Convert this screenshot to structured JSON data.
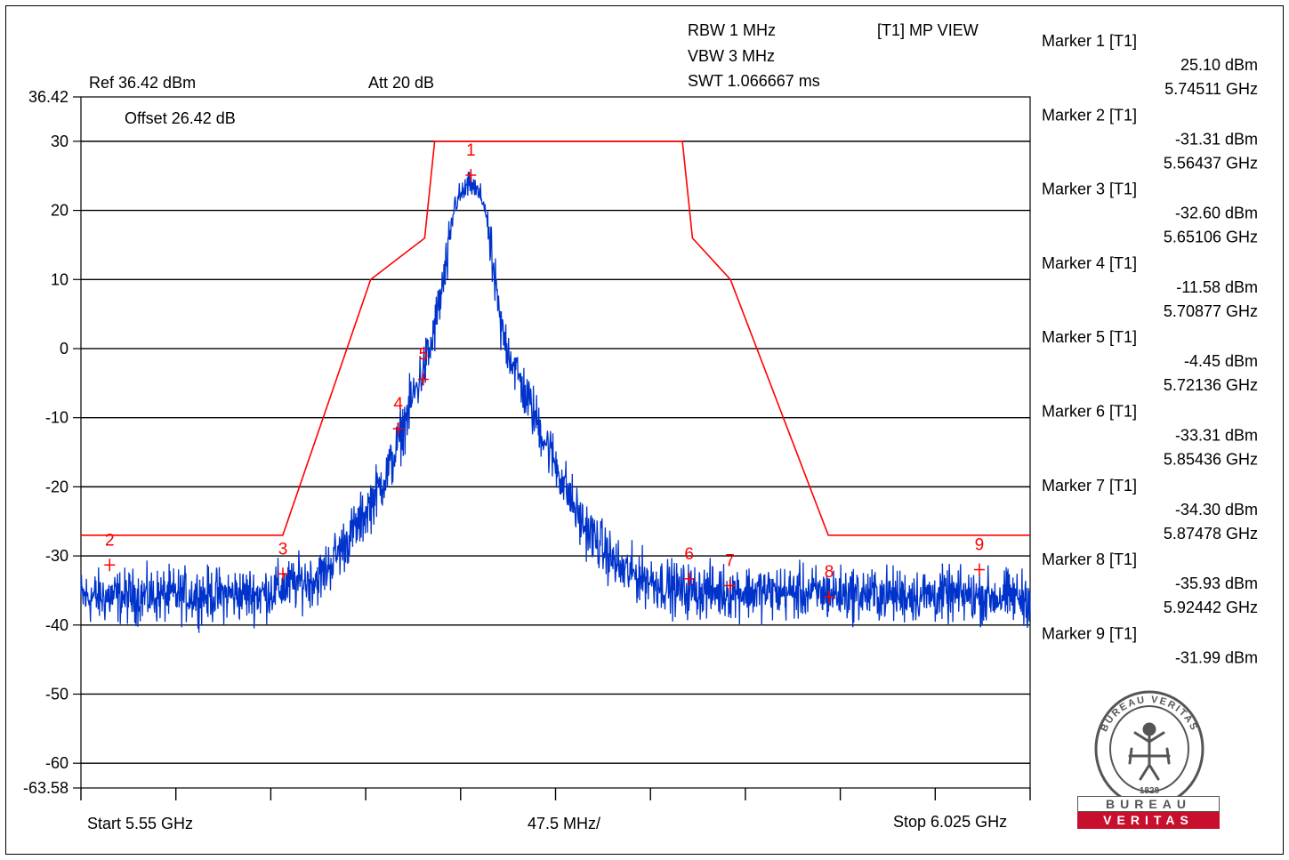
{
  "chart_data": {
    "type": "line",
    "instrument": {
      "ref": "Ref 36.42 dBm",
      "att": "Att  20 dB",
      "offset": "Offset 26.42 dB",
      "rbw": "RBW 1 MHz",
      "vbw": "VBW 3 MHz",
      "swt": "SWT 1.066667 ms",
      "trace_mode": "[T1] MP VIEW"
    },
    "x_axis": {
      "start_label": "Start 5.55 GHz",
      "div_label": "47.5 MHz/",
      "stop_label": "Stop 6.025 GHz",
      "range_ghz": [
        5.55,
        6.025
      ]
    },
    "y_axis": {
      "range_dbm": [
        -63.58,
        36.42
      ],
      "tick_labels": [
        "36.42",
        "30",
        "20",
        "10",
        "0",
        "-10",
        "-20",
        "-30",
        "-40",
        "-50",
        "-60",
        "-63.58"
      ],
      "tick_values": [
        36.42,
        30,
        20,
        10,
        0,
        -10,
        -20,
        -30,
        -40,
        -50,
        -60,
        -63.58
      ]
    },
    "limit_line": {
      "color": "#ff0000",
      "points_ghz_dbm": [
        [
          5.55,
          -27
        ],
        [
          5.651,
          -27
        ],
        [
          5.695,
          10
        ],
        [
          5.722,
          16
        ],
        [
          5.727,
          30
        ],
        [
          5.851,
          30
        ],
        [
          5.856,
          16
        ],
        [
          5.875,
          10
        ],
        [
          5.924,
          -27
        ],
        [
          6.025,
          -27
        ]
      ]
    },
    "trace": {
      "color": "#0033cc",
      "floor_dbm": -36,
      "peak_dbm": 25.1,
      "center_ghz": 5.7451,
      "shape_points_ghz_dbm": [
        [
          5.55,
          -36
        ],
        [
          5.64,
          -35.5
        ],
        [
          5.67,
          -33
        ],
        [
          5.69,
          -25
        ],
        [
          5.705,
          -17
        ],
        [
          5.715,
          -8
        ],
        [
          5.725,
          0
        ],
        [
          5.733,
          12
        ],
        [
          5.737,
          21
        ],
        [
          5.745,
          24
        ],
        [
          5.752,
          21
        ],
        [
          5.756,
          12
        ],
        [
          5.76,
          3
        ],
        [
          5.77,
          -5
        ],
        [
          5.785,
          -15
        ],
        [
          5.8,
          -25
        ],
        [
          5.82,
          -32
        ],
        [
          5.85,
          -35
        ],
        [
          6.025,
          -36
        ]
      ]
    },
    "markers": [
      {
        "id": "1",
        "header": "Marker 1 [T1]",
        "level": "25.10 dBm",
        "freq": "5.74511 GHz",
        "x": 5.74511,
        "y": 25.1
      },
      {
        "id": "2",
        "header": "Marker 2 [T1]",
        "level": "-31.31 dBm",
        "freq": "5.56437 GHz",
        "x": 5.56437,
        "y": -31.31
      },
      {
        "id": "3",
        "header": "Marker 3 [T1]",
        "level": "-32.60 dBm",
        "freq": "5.65106 GHz",
        "x": 5.65106,
        "y": -32.6
      },
      {
        "id": "4",
        "header": "Marker 4 [T1]",
        "level": "-11.58 dBm",
        "freq": "5.70877 GHz",
        "x": 5.70877,
        "y": -11.58
      },
      {
        "id": "5",
        "header": "Marker 5 [T1]",
        "level": "-4.45 dBm",
        "freq": "5.72136 GHz",
        "x": 5.72136,
        "y": -4.45
      },
      {
        "id": "6",
        "header": "Marker 6 [T1]",
        "level": "-33.31 dBm",
        "freq": "5.85436 GHz",
        "x": 5.85436,
        "y": -33.31
      },
      {
        "id": "7",
        "header": "Marker 7 [T1]",
        "level": "-34.30 dBm",
        "freq": "5.87478 GHz",
        "x": 5.87478,
        "y": -34.3
      },
      {
        "id": "8",
        "header": "Marker 8 [T1]",
        "level": "-35.93 dBm",
        "freq": "5.92442 GHz",
        "x": 5.92442,
        "y": -35.93
      },
      {
        "id": "9",
        "header": "Marker 9 [T1]",
        "level": "-31.99 dBm",
        "freq": "",
        "x": 5.9996,
        "y": -31.99
      }
    ]
  },
  "logo": {
    "ring_text": "BUREAU VERITAS",
    "year": "1828",
    "word_top": "BUREAU",
    "word_bottom": "VERITAS",
    "red": "#c8102e"
  }
}
